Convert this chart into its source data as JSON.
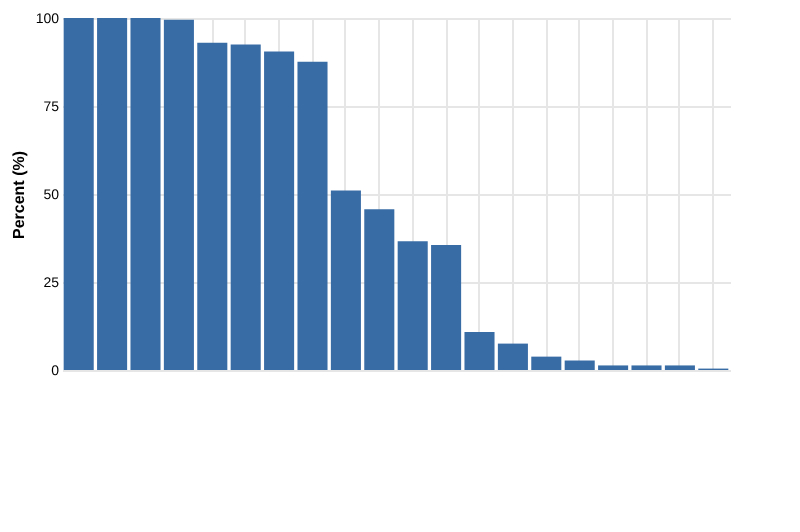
{
  "chart_data": {
    "type": "bar",
    "ylabel": "Percent (%)",
    "categories": [
      null,
      null,
      null,
      null,
      null,
      null,
      null,
      null,
      null,
      null,
      null,
      null,
      null,
      null,
      null,
      null,
      null,
      null,
      null,
      null
    ],
    "series": [
      {
        "color": "#386ca5",
        "values": [
          100,
          100,
          100,
          99.5,
          93,
          92.5,
          90.5,
          87.6,
          51,
          45.7,
          36.6,
          35.5,
          10.8,
          7.5,
          3.8,
          2.7,
          1.3,
          1.3,
          1.3,
          0.4
        ]
      }
    ],
    "ylim": [
      0,
      100
    ],
    "yticks": [
      0,
      25,
      50,
      75,
      100
    ],
    "grid": true
  }
}
